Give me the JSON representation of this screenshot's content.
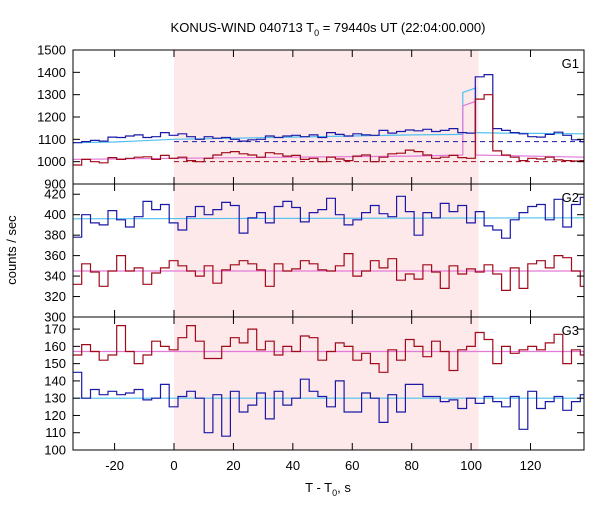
{
  "chart_data": {
    "type": "line",
    "title_main": "KONUS-WIND 040713 T",
    "title_sub": "0",
    "title_rest": " = 79440s UT (22:04:00.000)",
    "xlabel_main": "T - T",
    "xlabel_sub": "0",
    "xlabel_rest": ", s",
    "ylabel": "counts / sec",
    "xlim": [
      -34,
      138
    ],
    "x_ticks": [
      -20,
      0,
      20,
      40,
      60,
      80,
      100,
      120
    ],
    "shaded_interval": [
      0,
      102.5
    ],
    "colors": {
      "shade": "#fde8ea",
      "series_blue": "#1a1aa6",
      "series_red": "#a00a1a",
      "fit_blue": "#4fc1ee",
      "fit_red": "#e27ad8",
      "dashed_blue": "#1a1aa6",
      "dashed_red": "#a00a1a"
    },
    "panels": [
      {
        "label": "G1",
        "ylim": [
          900,
          1500
        ],
        "y_ticks": [
          900,
          1000,
          1100,
          1200,
          1300,
          1400,
          1500
        ],
        "y_tick_labels": [
          "900",
          "1000",
          "1100",
          "1200",
          "1300",
          "1400",
          "1500"
        ],
        "x_start": -34,
        "bin_width": 2.944,
        "series": [
          {
            "color_key": "series_blue",
            "values": [
              1085,
              1090,
              1095,
              1092,
              1110,
              1108,
              1115,
              1120,
              1108,
              1112,
              1130,
              1118,
              1125,
              1112,
              1100,
              1112,
              1105,
              1108,
              1100,
              1092,
              1098,
              1100,
              1115,
              1108,
              1115,
              1118,
              1112,
              1120,
              1108,
              1130,
              1122,
              1115,
              1125,
              1120,
              1118,
              1140,
              1128,
              1135,
              1142,
              1138,
              1145,
              1135,
              1140,
              1148,
              1130,
              1128,
              1380,
              1390,
              1148,
              1140,
              1130,
              1125,
              1112,
              1110,
              1122,
              1132,
              1118,
              1098,
              1090
            ]
          },
          {
            "color_key": "series_red",
            "values": [
              985,
              1010,
              1000,
              995,
              1018,
              1010,
              1015,
              1020,
              1022,
              1010,
              1028,
              1015,
              1020,
              1005,
              1000,
              1015,
              1030,
              1040,
              1045,
              1035,
              1030,
              1020,
              1040,
              1035,
              1025,
              1028,
              1010,
              1015,
              1000,
              1020,
              1012,
              1005,
              1025,
              1030,
              1000,
              1020,
              1035,
              1038,
              1052,
              1045,
              1030,
              1015,
              1020,
              1028,
              1018,
              1015,
              1280,
              1300,
              1048,
              1030,
              1020,
              1005,
              1015,
              1012,
              1020,
              1008,
              1005,
              1003,
              1005
            ]
          }
        ],
        "fit_lines": [
          {
            "color_key": "fit_blue",
            "x": [
              -34,
              -20,
              0,
              20,
              40,
              60,
              80,
              97.2,
              97.2,
              101.5,
              101.5,
              110,
              138
            ],
            "y": [
              1085,
              1088,
              1100,
              1105,
              1110,
              1115,
              1120,
              1122,
              1310,
              1330,
              1130,
              1128,
              1125
            ]
          },
          {
            "color_key": "fit_red",
            "x": [
              -34,
              0,
              40,
              80,
              97.2,
              97.2,
              101.5,
              101.5,
              138
            ],
            "y": [
              1010,
              1015,
              1020,
              1025,
              1030,
              1250,
              1270,
              1030,
              1020
            ]
          }
        ],
        "dashed_lines": [
          {
            "color_key": "dashed_blue",
            "x_from": 0,
            "y": 1090
          },
          {
            "color_key": "dashed_red",
            "x_from": 0,
            "y": 1000
          }
        ]
      },
      {
        "label": "G2",
        "ylim": [
          300,
          430
        ],
        "y_ticks": [
          300,
          320,
          340,
          360,
          380,
          400,
          420
        ],
        "y_tick_labels": [
          "300",
          "320",
          "340",
          "360",
          "380",
          "400",
          "420"
        ],
        "x_start": -34,
        "bin_width": 2.944,
        "series": [
          {
            "color_key": "series_blue",
            "values": [
              378,
              400,
              392,
              390,
              404,
              395,
              388,
              398,
              413,
              405,
              410,
              392,
              385,
              398,
              408,
              400,
              405,
              412,
              409,
              382,
              397,
              402,
              392,
              408,
              413,
              407,
              393,
              402,
              405,
              416,
              400,
              390,
              395,
              402,
              409,
              401,
              398,
              418,
              403,
              380,
              402,
              397,
              411,
              403,
              409,
              392,
              403,
              389,
              385,
              377,
              395,
              402,
              408,
              410,
              395,
              415,
              388,
              410,
              417
            ]
          },
          {
            "color_key": "series_red",
            "values": [
              332,
              352,
              344,
              330,
              345,
              360,
              345,
              348,
              332,
              343,
              348,
              355,
              350,
              345,
              340,
              350,
              333,
              346,
              351,
              355,
              352,
              346,
              330,
              352,
              345,
              347,
              355,
              352,
              346,
              345,
              350,
              362,
              340,
              345,
              355,
              348,
              357,
              336,
              342,
              337,
              351,
              344,
              328,
              350,
              342,
              347,
              344,
              351,
              342,
              326,
              348,
              328,
              352,
              355,
              348,
              360,
              358,
              345,
              330
            ]
          }
        ],
        "fit_lines": [
          {
            "color_key": "fit_blue",
            "x": [
              -34,
              138
            ],
            "y": [
              396,
              397
            ]
          },
          {
            "color_key": "fit_red",
            "x": [
              -34,
              138
            ],
            "y": [
              345,
              345
            ]
          }
        ],
        "dashed_lines": []
      },
      {
        "label": "G3",
        "ylim": [
          100,
          177
        ],
        "y_ticks": [
          100,
          110,
          120,
          130,
          140,
          150,
          160,
          170
        ],
        "y_tick_labels": [
          "100",
          "110",
          "120",
          "130",
          "140",
          "150",
          "160",
          "170"
        ],
        "x_start": -34,
        "bin_width": 2.944,
        "series": [
          {
            "color_key": "series_blue",
            "values": [
              145,
              130,
              135,
              132,
              134,
              132,
              133,
              135,
              129,
              130,
              138,
              125,
              131,
              134,
              130,
              110,
              132,
              108,
              134,
              122,
              126,
              133,
              118,
              134,
              126,
              130,
              141,
              134,
              131,
              125,
              140,
              122,
              122,
              133,
              130,
              116,
              132,
              122,
              138,
              138,
              131,
              131,
              128,
              129,
              124,
              130,
              127,
              131,
              128,
              125,
              131,
              112,
              134,
              124,
              128,
              131,
              123,
              128,
              132
            ]
          },
          {
            "color_key": "series_red",
            "values": [
              155,
              161,
              157,
              152,
              155,
              172,
              157,
              150,
              155,
              163,
              160,
              158,
              165,
              172,
              163,
              153,
              153,
              160,
              165,
              162,
              170,
              158,
              163,
              155,
              160,
              157,
              166,
              165,
              152,
              157,
              162,
              160,
              152,
              156,
              150,
              145,
              158,
              152,
              164,
              160,
              154,
              163,
              157,
              146,
              158,
              160,
              168,
              164,
              150,
              160,
              156,
              158,
              160,
              158,
              162,
              167,
              150,
              158,
              155
            ]
          }
        ],
        "fit_lines": [
          {
            "color_key": "fit_blue",
            "x": [
              -34,
              138
            ],
            "y": [
              130,
              130
            ]
          },
          {
            "color_key": "fit_red",
            "x": [
              -34,
              138
            ],
            "y": [
              157,
              157
            ]
          }
        ],
        "dashed_lines": []
      }
    ]
  }
}
